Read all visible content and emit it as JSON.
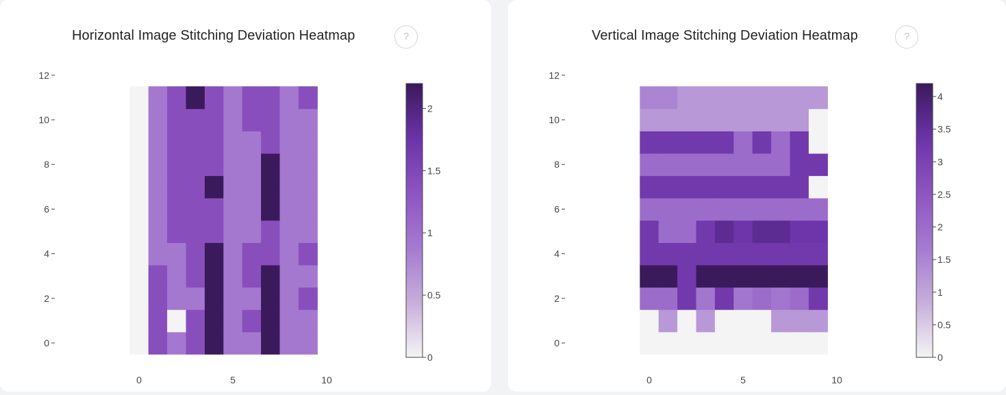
{
  "charts": [
    {
      "title": "Horizontal Image Stitching Deviation Heatmap",
      "help_icon": "?",
      "colorbar_ticks": [
        "0",
        "0.5",
        "1",
        "1.5",
        "2"
      ]
    },
    {
      "title": "Vertical Image Stitching Deviation Heatmap",
      "help_icon": "?",
      "colorbar_ticks": [
        "0",
        "0.5",
        "1",
        "1.5",
        "2",
        "2.5",
        "3",
        "3.5",
        "4"
      ]
    }
  ],
  "colorscale": [
    "#f4f4f4",
    "#c7aedb",
    "#a57ad0",
    "#8e55c1",
    "#6b33a8",
    "#3b1a5c"
  ],
  "chart_data": [
    {
      "type": "heatmap",
      "title": "Horizontal Image Stitching Deviation Heatmap",
      "x": [
        0,
        1,
        2,
        3,
        4,
        5,
        6,
        7,
        8,
        9
      ],
      "y": [
        0,
        1,
        2,
        3,
        4,
        5,
        6,
        7,
        8,
        9,
        10,
        11
      ],
      "xlim": [
        -0.5,
        9.5
      ],
      "ylim": [
        -0.5,
        11.5
      ],
      "x_ticks": [
        0,
        5,
        10
      ],
      "y_ticks": [
        0,
        2,
        4,
        6,
        8,
        10,
        12
      ],
      "zmin": 0,
      "zmax": 2.2,
      "colorbar_ticks": [
        0,
        0.5,
        1,
        1.5,
        2
      ],
      "z": [
        [
          0,
          1.4,
          0.9,
          1.4,
          2.2,
          0.9,
          0.9,
          2.2,
          0.9,
          0.9
        ],
        [
          0,
          1.4,
          0,
          1.4,
          2.2,
          0.9,
          1.4,
          2.2,
          0.9,
          0.9
        ],
        [
          0,
          1.4,
          0.9,
          0.9,
          2.2,
          0.9,
          0.9,
          2.2,
          0.9,
          1.4
        ],
        [
          0,
          1.4,
          0.9,
          1.4,
          2.2,
          0.9,
          1.4,
          2.2,
          0.9,
          0.9
        ],
        [
          0,
          0.9,
          0.9,
          1.4,
          2.2,
          0.9,
          1.4,
          1.4,
          0.9,
          1.4
        ],
        [
          0,
          0.9,
          1.4,
          1.4,
          1.4,
          0.9,
          0.9,
          1.4,
          0.9,
          0.9
        ],
        [
          0,
          0.9,
          1.4,
          1.4,
          1.4,
          0.9,
          0.9,
          2.2,
          0.9,
          0.9
        ],
        [
          0,
          0.9,
          1.4,
          1.4,
          2.2,
          0.9,
          0.9,
          2.2,
          0.9,
          0.9
        ],
        [
          0,
          0.9,
          1.4,
          1.4,
          1.4,
          0.9,
          0.9,
          2.2,
          0.9,
          0.9
        ],
        [
          0,
          0.9,
          1.4,
          1.4,
          1.4,
          0.9,
          0.9,
          1.4,
          0.9,
          0.9
        ],
        [
          0,
          0.9,
          1.4,
          1.4,
          1.4,
          0.9,
          1.4,
          1.4,
          0.9,
          0.9
        ],
        [
          0,
          0.9,
          1.4,
          2.2,
          1.4,
          0.9,
          1.4,
          1.4,
          0.9,
          1.4
        ]
      ]
    },
    {
      "type": "heatmap",
      "title": "Vertical Image Stitching Deviation Heatmap",
      "x": [
        0,
        1,
        2,
        3,
        4,
        5,
        6,
        7,
        8,
        9
      ],
      "y": [
        0,
        1,
        2,
        3,
        4,
        5,
        6,
        7,
        8,
        9,
        10,
        11
      ],
      "xlim": [
        -0.5,
        9.5
      ],
      "ylim": [
        -0.5,
        11.5
      ],
      "x_ticks": [
        0,
        5,
        10
      ],
      "y_ticks": [
        0,
        2,
        4,
        6,
        8,
        10,
        12
      ],
      "zmin": 0,
      "zmax": 4.2,
      "colorbar_ticks": [
        0,
        0.5,
        1,
        1.5,
        2,
        2.5,
        3,
        3.5,
        4
      ],
      "z": [
        [
          0,
          0,
          0,
          0,
          0,
          0,
          0,
          0,
          0,
          0
        ],
        [
          0,
          1.2,
          0,
          1.2,
          0,
          0,
          0,
          1.2,
          1.2,
          1.2
        ],
        [
          2.0,
          2.0,
          3.2,
          1.8,
          3.2,
          1.8,
          2.0,
          1.8,
          2.0,
          3.2
        ],
        [
          4.2,
          4.2,
          3.2,
          4.2,
          4.2,
          4.2,
          4.2,
          4.2,
          4.2,
          4.2
        ],
        [
          3.2,
          3.2,
          3.2,
          3.2,
          3.2,
          3.2,
          3.2,
          3.2,
          3.2,
          3.2
        ],
        [
          3.2,
          2.0,
          2.0,
          3.2,
          3.6,
          3.3,
          3.6,
          3.6,
          3.3,
          3.3
        ],
        [
          2.0,
          2.0,
          2.0,
          2.0,
          2.0,
          2.0,
          2.0,
          2.0,
          2.0,
          2.0
        ],
        [
          3.2,
          3.2,
          3.2,
          3.2,
          3.2,
          3.2,
          3.2,
          3.2,
          3.2,
          0
        ],
        [
          2.0,
          2.0,
          2.0,
          2.0,
          2.0,
          2.0,
          2.0,
          2.0,
          3.2,
          3.2
        ],
        [
          3.2,
          3.2,
          3.2,
          3.2,
          3.2,
          2.0,
          3.2,
          2.0,
          3.2,
          0
        ],
        [
          1.2,
          1.2,
          1.2,
          1.2,
          1.2,
          1.2,
          1.2,
          1.2,
          1.2,
          0
        ],
        [
          1.5,
          1.5,
          1.2,
          1.2,
          1.2,
          1.2,
          1.2,
          1.2,
          1.2,
          1.2
        ]
      ]
    }
  ]
}
